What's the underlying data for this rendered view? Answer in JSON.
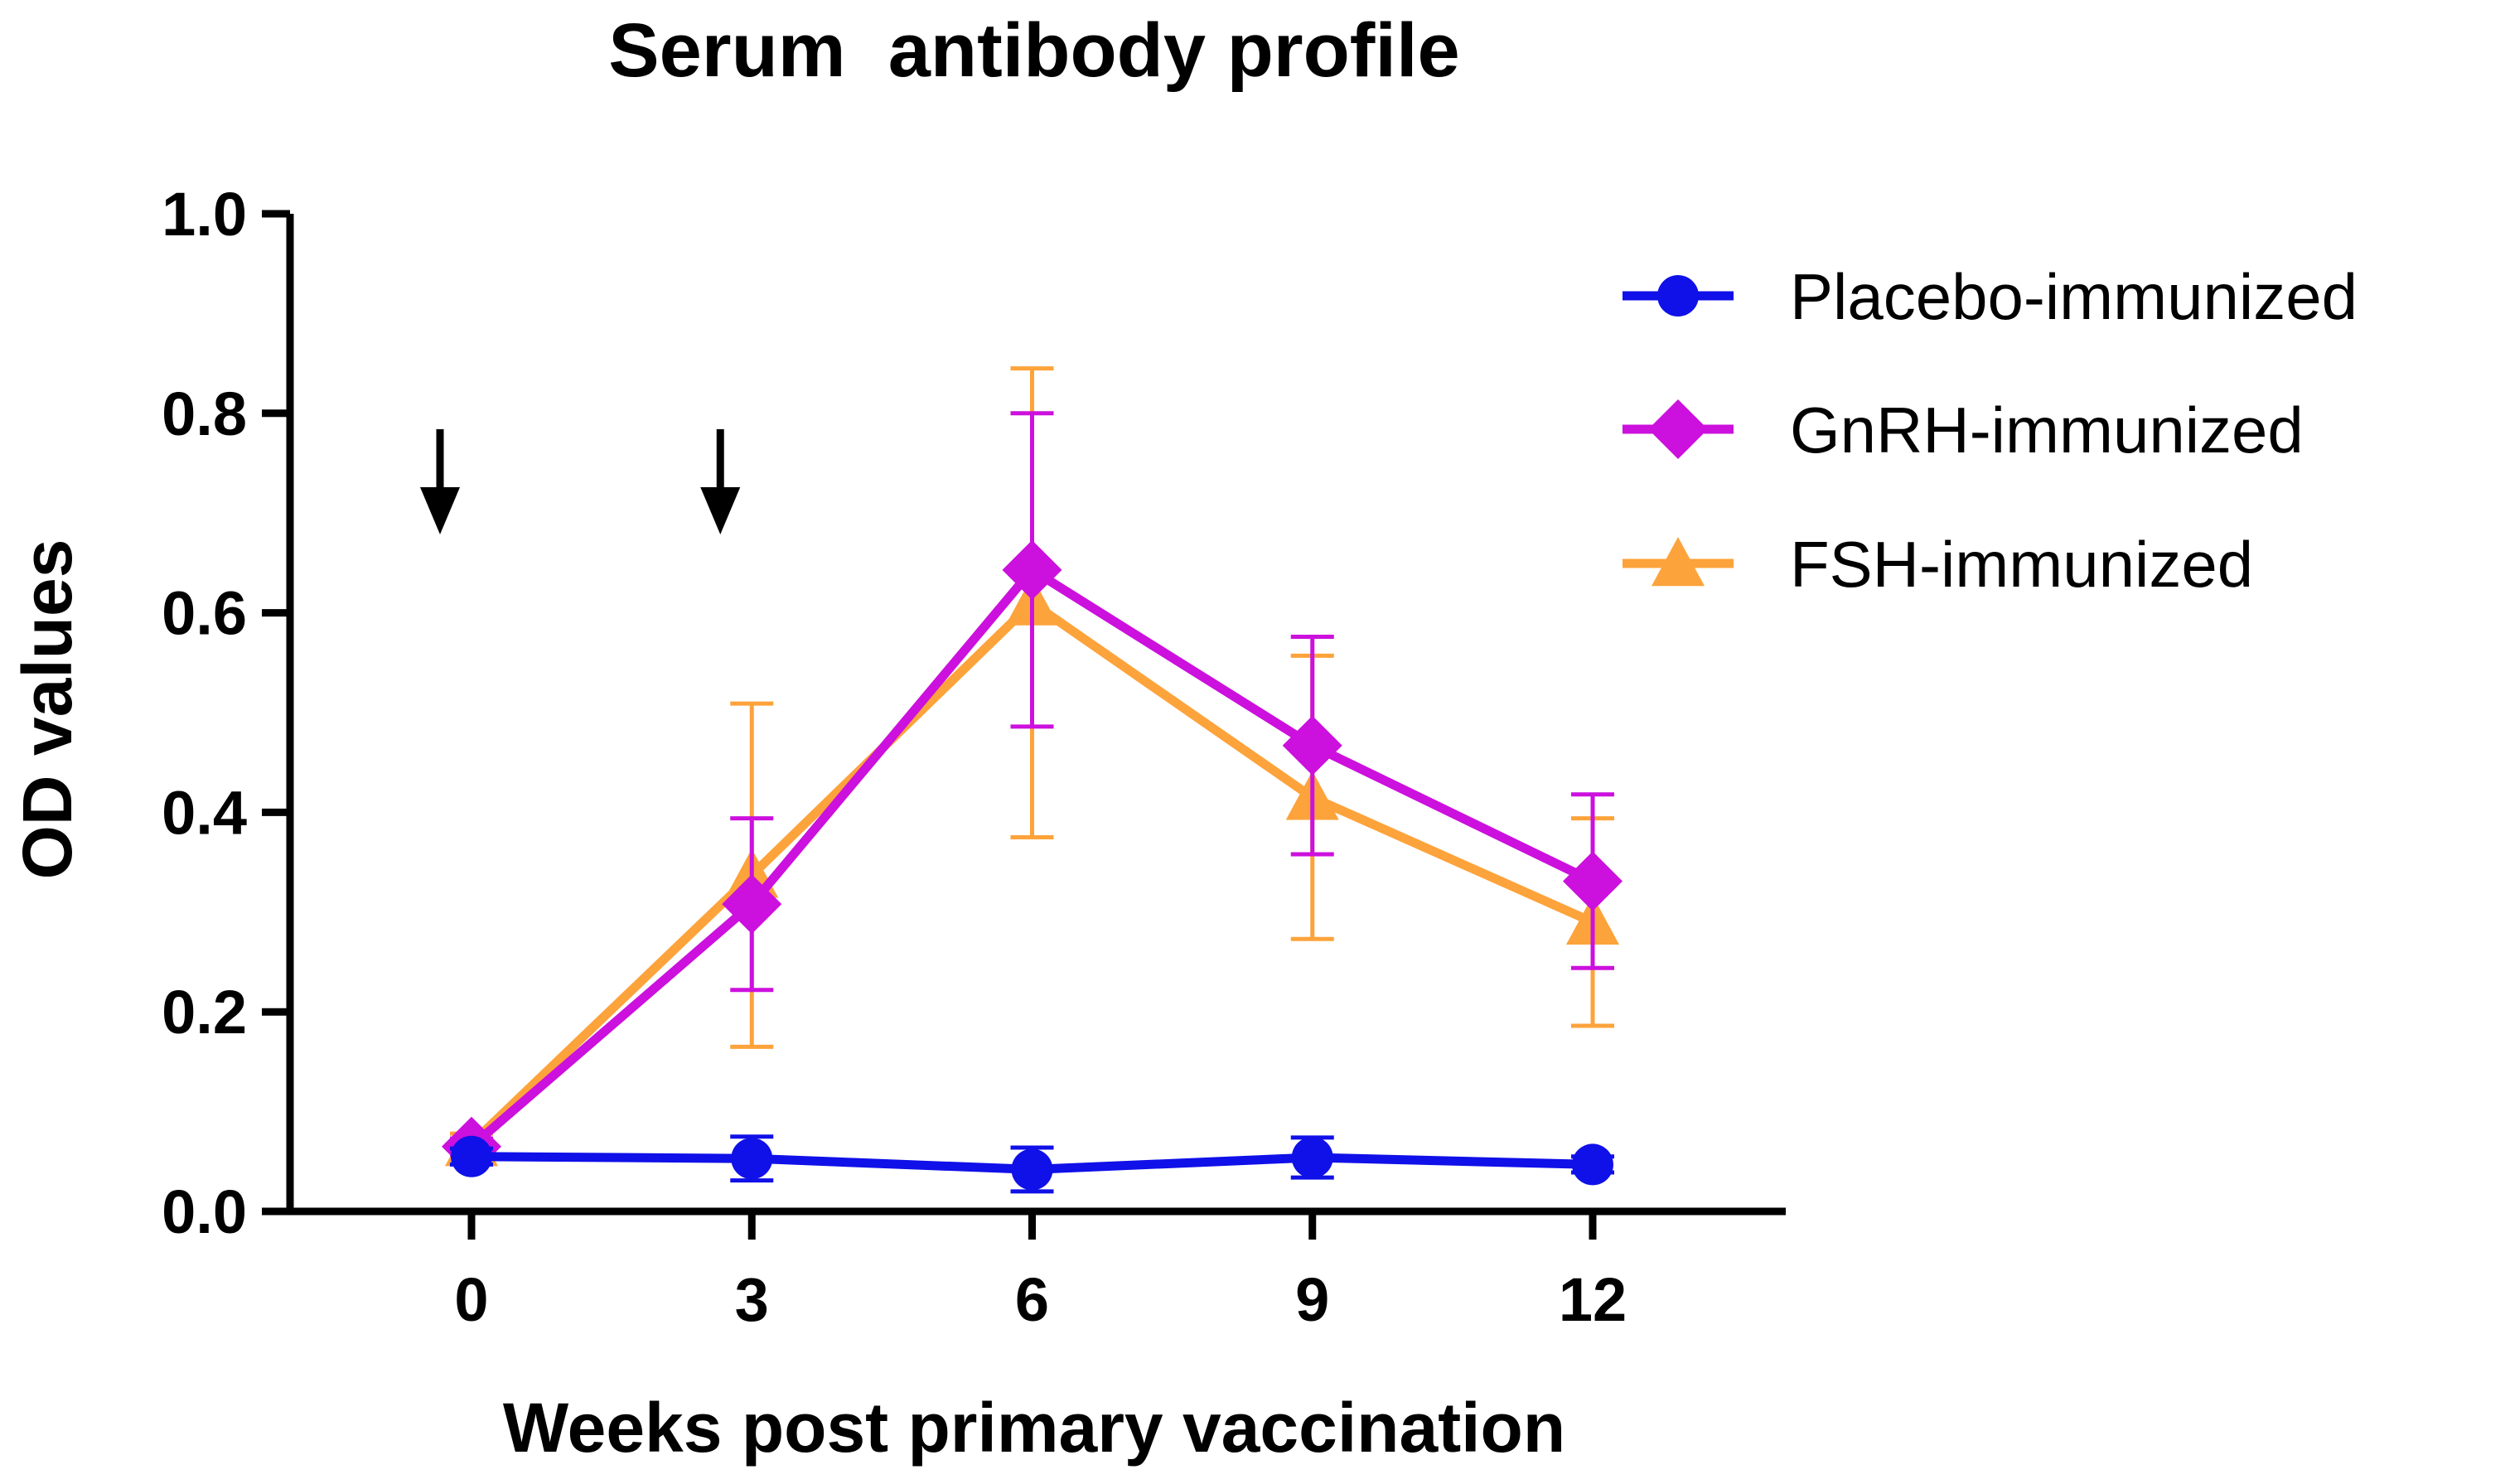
{
  "chart_data": {
    "type": "line",
    "title": "Serum  antibody profile",
    "xlabel": "Weeks post primary vaccination",
    "ylabel": "OD values",
    "x": [
      0,
      3,
      6,
      9,
      12
    ],
    "x_tick_labels": [
      "0",
      "3",
      "6",
      "9",
      "12"
    ],
    "xlim": [
      -2,
      14
    ],
    "ylim": [
      0,
      1.0
    ],
    "y_ticks": [
      0.0,
      0.2,
      0.4,
      0.6,
      0.8,
      1.0
    ],
    "y_tick_labels": [
      "0.0",
      "0.2",
      "0.4",
      "0.6",
      "0.8",
      "1.0"
    ],
    "grid": false,
    "legend_position": "right",
    "series": [
      {
        "name": "Placebo-immunized",
        "marker": "circle",
        "color": "#1010e8",
        "values": [
          0.055,
          0.053,
          0.042,
          0.054,
          0.047
        ],
        "error": [
          0.008,
          0.022,
          0.022,
          0.02,
          0.008
        ]
      },
      {
        "name": "GnRH-immunized",
        "marker": "diamond",
        "color": "#cc10dd",
        "values": [
          0.065,
          0.308,
          0.643,
          0.467,
          0.331
        ],
        "error": [
          0.008,
          0.086,
          0.157,
          0.109,
          0.087
        ]
      },
      {
        "name": "FSH-immunized",
        "marker": "triangle",
        "color": "#fda33b",
        "values": [
          0.068,
          0.337,
          0.61,
          0.415,
          0.29
        ],
        "error": [
          0.01,
          0.172,
          0.235,
          0.142,
          0.104
        ]
      }
    ],
    "annotations": [
      {
        "type": "arrow-down",
        "x": 0
      },
      {
        "type": "arrow-down",
        "x": 3
      }
    ]
  }
}
